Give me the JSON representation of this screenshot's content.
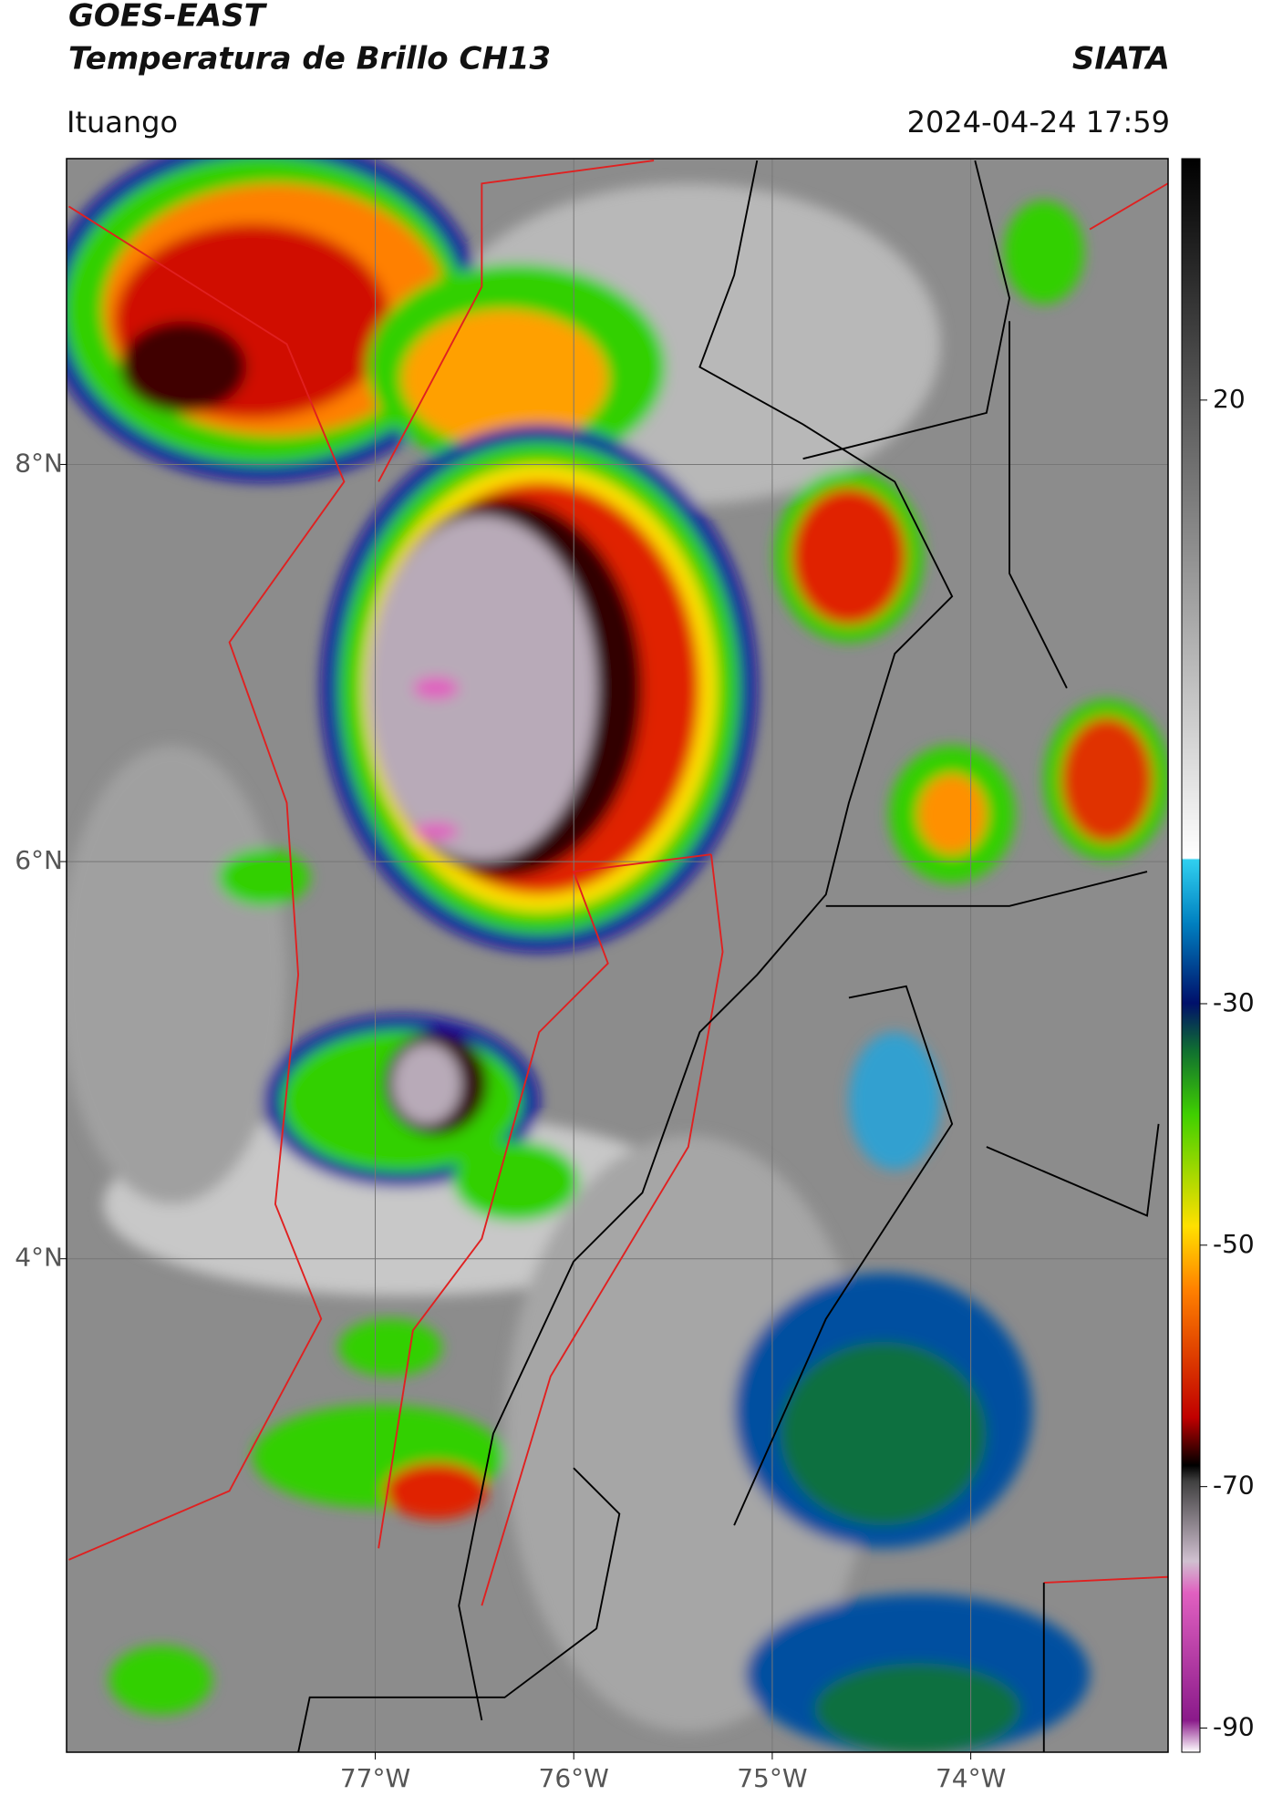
{
  "header": {
    "title": "GOES-EAST",
    "subtitle": "Temperatura de Brillo CH13",
    "source": "SIATA",
    "location": "Ituango",
    "datetime": "2024-04-24 17:59"
  },
  "map": {
    "xlim": [
      -78.555,
      -73.006
    ],
    "ylim": [
      1.515,
      9.54
    ],
    "xticks": [
      {
        "value": -77,
        "label": "77°W"
      },
      {
        "value": -76,
        "label": "76°W"
      },
      {
        "value": -75,
        "label": "75°W"
      },
      {
        "value": -74,
        "label": "74°W"
      }
    ],
    "yticks": [
      {
        "value": 8,
        "label": "8°N"
      },
      {
        "value": 6,
        "label": "6°N"
      },
      {
        "value": 4,
        "label": "4°N"
      }
    ],
    "grid": true
  },
  "colorbar": {
    "lim": [
      -92,
      40
    ],
    "ticks": [
      20,
      -30,
      -50,
      -70,
      -90
    ]
  }
}
